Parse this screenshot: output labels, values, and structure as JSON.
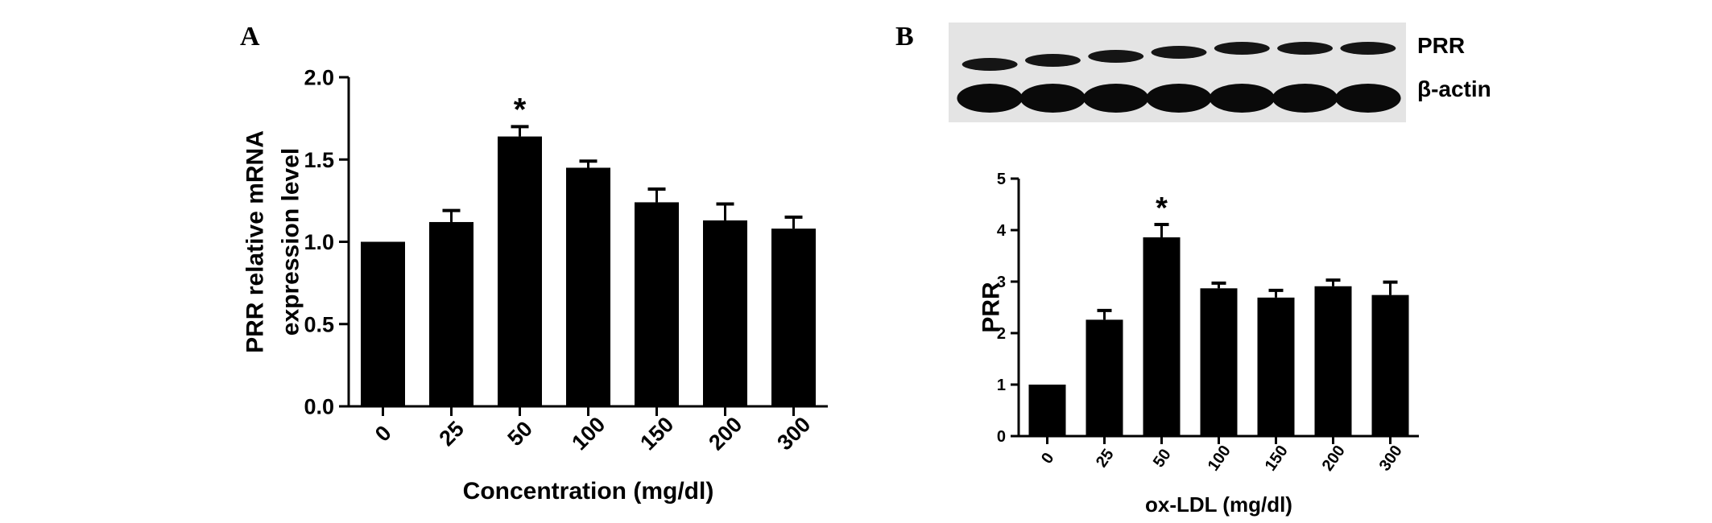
{
  "panels": {
    "a": {
      "letter": "A"
    },
    "b": {
      "letter": "B",
      "blot_labels": [
        "PRR",
        "β-actin"
      ],
      "blot_lanes": 7
    }
  },
  "chart_data": [
    {
      "type": "bar",
      "panel": "A",
      "categories": [
        "0",
        "25",
        "50",
        "100",
        "150",
        "200",
        "300"
      ],
      "values": [
        1.0,
        1.12,
        1.64,
        1.45,
        1.24,
        1.13,
        1.08
      ],
      "errors": [
        0.0,
        0.07,
        0.06,
        0.04,
        0.08,
        0.1,
        0.07
      ],
      "significance": [
        "",
        "",
        "*",
        "",
        "",
        "",
        ""
      ],
      "xlabel": "Concentration (mg/dl)",
      "ylabel_lines": [
        "PRR relative mRNA",
        "expression level"
      ],
      "ylim": [
        0,
        2.0
      ],
      "yticks": [
        "0.0",
        "0.5",
        "1.0",
        "1.5",
        "2.0"
      ],
      "grid": false,
      "bar_color": "#000000"
    },
    {
      "type": "bar",
      "panel": "B",
      "categories": [
        "0",
        "25",
        "50",
        "100",
        "150",
        "200",
        "300"
      ],
      "values": [
        1.0,
        2.26,
        3.86,
        2.87,
        2.69,
        2.91,
        2.74
      ],
      "errors": [
        0.0,
        0.18,
        0.25,
        0.1,
        0.14,
        0.12,
        0.25
      ],
      "significance": [
        "",
        "",
        "*",
        "",
        "",
        "",
        ""
      ],
      "xlabel": "ox-LDL (mg/dl)",
      "ylabel_lines": [
        "PRR"
      ],
      "ylim": [
        0,
        5
      ],
      "yticks": [
        "0",
        "1",
        "2",
        "3",
        "4",
        "5"
      ],
      "grid": false,
      "bar_color": "#000000"
    }
  ]
}
